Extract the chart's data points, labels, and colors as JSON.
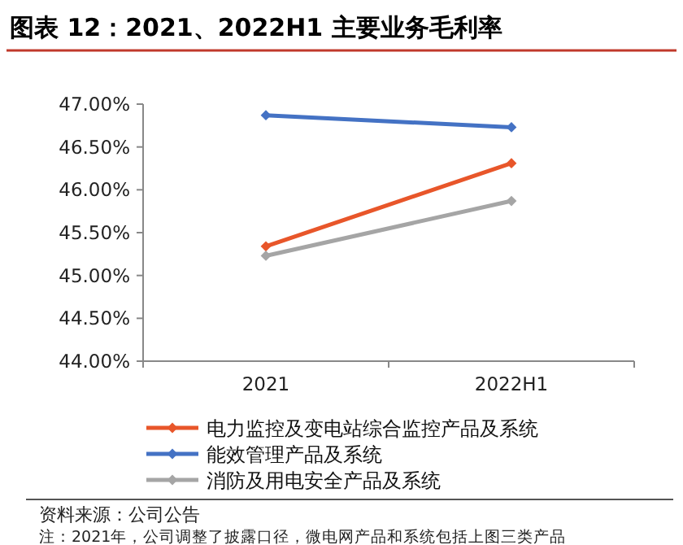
{
  "chart_data": {
    "type": "line",
    "title": "图表 12：2021、2022H1 主要业务毛利率",
    "categories": [
      "2021",
      "2022H1"
    ],
    "series": [
      {
        "name": "电力监控及变电站综合监控产品及系统",
        "color": "#e8562a",
        "values": [
          45.34,
          46.31
        ]
      },
      {
        "name": "能效管理产品及系统",
        "color": "#4472c4",
        "values": [
          46.87,
          46.73
        ]
      },
      {
        "name": "消防及用电安全产品及系统",
        "color": "#a5a5a5",
        "values": [
          45.23,
          45.87
        ]
      }
    ],
    "ylim": [
      44,
      47
    ],
    "yticks": [
      {
        "value": 44,
        "label": "44.00%"
      },
      {
        "value": 44.5,
        "label": "44.50%"
      },
      {
        "value": 45,
        "label": "45.00%"
      },
      {
        "value": 45.5,
        "label": "45.50%"
      },
      {
        "value": 46,
        "label": "46.00%"
      },
      {
        "value": 46.5,
        "label": "46.50%"
      },
      {
        "value": 47,
        "label": "47.00%"
      }
    ],
    "marker": "diamond",
    "legend": "bottom",
    "grid": false,
    "annotations": [
      "资料来源：公司公告",
      "注：2021年，公司调整了披露口径，微电网产品和系统包括上图三类产品"
    ]
  }
}
